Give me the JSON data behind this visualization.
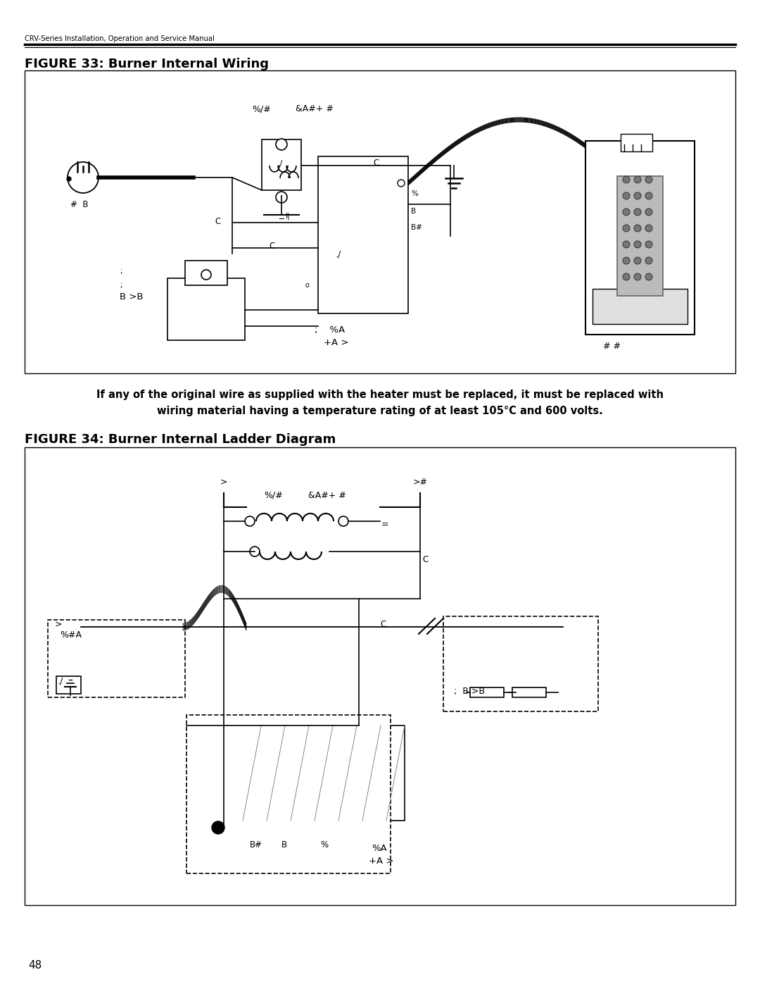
{
  "page_width": 10.8,
  "page_height": 13.97,
  "background_color": "#ffffff",
  "header_text": "CRV-Series Installation, Operation and Service Manual",
  "figure33_title": "FIGURE 33: Burner Internal Wiring",
  "figure34_title": "FIGURE 34: Burner Internal Ladder Diagram",
  "warning_line1": "If any of the original wire as supplied with the heater must be replaced, it must be replaced with",
  "warning_line2": "wiring material having a temperature rating of at least 105°C and 600 volts.",
  "page_number": "48"
}
